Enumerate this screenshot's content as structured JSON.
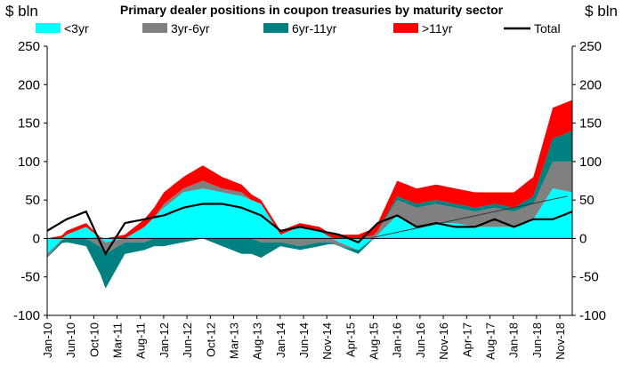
{
  "chart_data": {
    "type": "area",
    "title": "Primary dealer positions in coupon treasuries by maturity sector",
    "ylabel_left": "$ bln",
    "ylabel_right": "$ bln",
    "ylim": [
      -100,
      250
    ],
    "yticks": [
      250,
      200,
      150,
      100,
      50,
      0,
      -50,
      -100
    ],
    "x_tick_labels": [
      "Jan-10",
      "Jun-10",
      "Oct-10",
      "Mar-11",
      "Aug-11",
      "Jan-12",
      "Jun-12",
      "Oct-12",
      "Mar-13",
      "Aug-13",
      "Jan-14",
      "Jun-14",
      "Nov-14",
      "Apr-15",
      "Aug-15",
      "Jan-16",
      "Jun-16",
      "Nov-16",
      "Apr-17",
      "Aug-17",
      "Jan-18",
      "Jun-18",
      "Nov-18"
    ],
    "x_months": [
      "2010-01",
      "2010-05",
      "2010-09",
      "2011-01",
      "2011-05",
      "2011-09",
      "2012-01",
      "2012-05",
      "2012-09",
      "2013-01",
      "2013-05",
      "2013-09",
      "2014-01",
      "2014-05",
      "2014-09",
      "2015-01",
      "2015-05",
      "2015-09",
      "2016-01",
      "2016-05",
      "2016-09",
      "2017-01",
      "2017-05",
      "2017-09",
      "2018-01",
      "2018-05",
      "2018-09",
      "2019-01"
    ],
    "series": [
      {
        "name": "<3yr",
        "color": "#00ffff",
        "values": [
          -20,
          5,
          15,
          -5,
          0,
          15,
          40,
          60,
          65,
          60,
          55,
          45,
          5,
          15,
          10,
          -5,
          -15,
          5,
          30,
          15,
          20,
          20,
          15,
          15,
          15,
          25,
          65,
          60
        ]
      },
      {
        "name": "3yr-6yr",
        "color": "#808080",
        "values": [
          -5,
          0,
          0,
          -15,
          -5,
          -5,
          5,
          5,
          10,
          5,
          5,
          -5,
          -5,
          -10,
          -5,
          -5,
          0,
          5,
          20,
          25,
          25,
          20,
          20,
          25,
          20,
          20,
          35,
          40
        ]
      },
      {
        "name": "6yr-11yr",
        "color": "#008080",
        "values": [
          0,
          -5,
          -10,
          -45,
          -15,
          -10,
          -10,
          -5,
          0,
          -10,
          -20,
          -20,
          -5,
          -5,
          -5,
          0,
          -5,
          0,
          5,
          5,
          5,
          5,
          5,
          5,
          5,
          10,
          30,
          40
        ]
      },
      {
        "name": ">11yr",
        "color": "#ff0000",
        "values": [
          0,
          5,
          5,
          0,
          5,
          10,
          15,
          15,
          20,
          15,
          10,
          5,
          5,
          5,
          5,
          5,
          5,
          10,
          20,
          20,
          20,
          20,
          20,
          15,
          20,
          25,
          40,
          40
        ]
      },
      {
        "name": "Total",
        "color": "#000000",
        "values": [
          10,
          25,
          35,
          -20,
          20,
          25,
          30,
          40,
          45,
          45,
          40,
          30,
          10,
          15,
          10,
          5,
          -5,
          20,
          30,
          15,
          20,
          15,
          15,
          25,
          15,
          25,
          25,
          35
        ]
      }
    ],
    "trendline": {
      "from": [
        "2015-07",
        0
      ],
      "to": [
        "2018-12",
        55
      ]
    }
  }
}
